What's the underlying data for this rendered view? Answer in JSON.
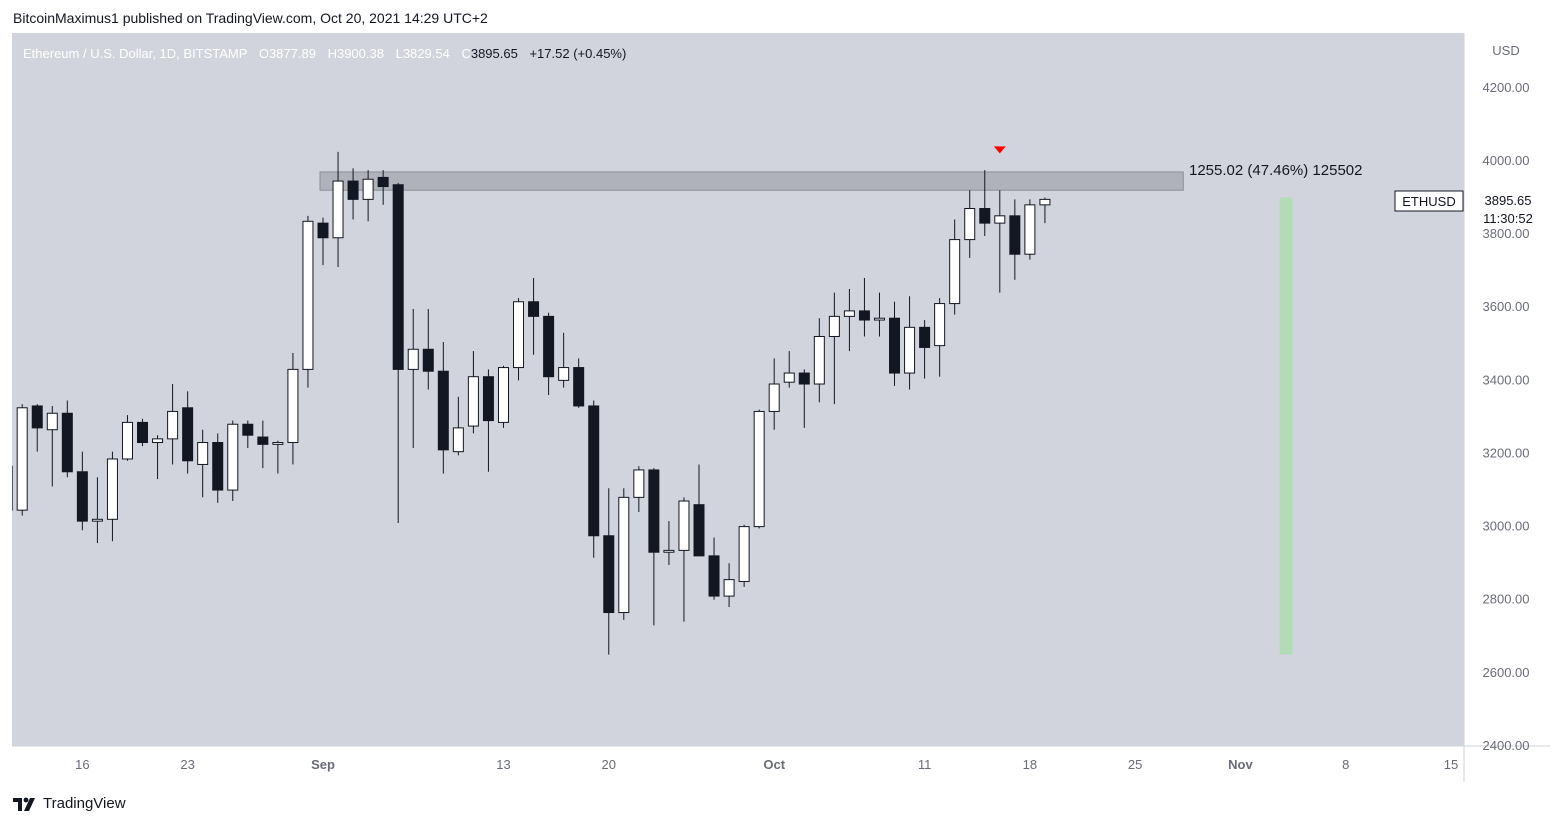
{
  "publisher": "BitcoinMaximus1 published on TradingView.com, Oct 20, 2021 14:29 UTC+2",
  "footer": {
    "brand": "TradingView",
    "logo_icon": "tradingview-logo-icon"
  },
  "colors": {
    "chart_bg": "#d1d4dc",
    "axis_bg": "#ffffff",
    "candle_up_fill": "#ffffff",
    "candle_down_fill": "#131722",
    "candle_border": "#131722",
    "resistance_zone": "#a6a9b0",
    "target_bar": "#b3dcb6",
    "marker_red": "#ff0000",
    "legend_text": "#ffffff"
  },
  "legend": {
    "symbol": "Ethereum / U.S. Dollar, 1D, BITSTAMP",
    "open_label": "O",
    "open": "3877.89",
    "high_label": "H",
    "high": "3900.38",
    "low_label": "L",
    "low": "3829.54",
    "close_label": "C",
    "close": "3895.65",
    "change": "+17.52 (+0.45%)"
  },
  "price_axis": {
    "currency": "USD"
  },
  "price_tag": {
    "symbol": "ETHUSD",
    "price": "3895.65",
    "countdown": "11:30:52"
  },
  "measure_label": "1255.02 (47.46%) 125502",
  "chart_data": {
    "type": "candlestick",
    "title": "",
    "ylim": [
      2400,
      4350
    ],
    "y_ticks": [
      2400,
      2600,
      2800,
      3000,
      3200,
      3400,
      3600,
      3800,
      4000,
      4200
    ],
    "x_ticks": [
      {
        "label": "16",
        "date": "2021-08-16"
      },
      {
        "label": "23",
        "date": "2021-08-23"
      },
      {
        "label": "Sep",
        "date": "2021-09-01"
      },
      {
        "label": "13",
        "date": "2021-09-13"
      },
      {
        "label": "20",
        "date": "2021-09-20"
      },
      {
        "label": "Oct",
        "date": "2021-10-01"
      },
      {
        "label": "11",
        "date": "2021-10-11"
      },
      {
        "label": "18",
        "date": "2021-10-18"
      },
      {
        "label": "25",
        "date": "2021-10-25"
      },
      {
        "label": "Nov",
        "date": "2021-11-01"
      },
      {
        "label": "8",
        "date": "2021-11-08"
      },
      {
        "label": "15",
        "date": "2021-11-15"
      }
    ],
    "resistance_zone": {
      "low": 3920,
      "high": 3970,
      "from": "2021-09-01",
      "to": "2021-10-28"
    },
    "target_range": {
      "low": 2650,
      "high": 3900,
      "date": "2021-11-04"
    },
    "marker": {
      "date": "2021-10-16",
      "price": 4040
    },
    "candles": [
      {
        "date": "2021-08-11",
        "o": 3165,
        "h": 3270,
        "l": 2975,
        "c": 3045
      },
      {
        "date": "2021-08-12",
        "o": 3045,
        "h": 3335,
        "l": 3030,
        "c": 3325
      },
      {
        "date": "2021-08-13",
        "o": 3330,
        "h": 3335,
        "l": 3205,
        "c": 3270
      },
      {
        "date": "2021-08-14",
        "o": 3265,
        "h": 3330,
        "l": 3110,
        "c": 3310
      },
      {
        "date": "2021-08-15",
        "o": 3310,
        "h": 3345,
        "l": 3135,
        "c": 3150
      },
      {
        "date": "2021-08-16",
        "o": 3150,
        "h": 3205,
        "l": 2990,
        "c": 3015
      },
      {
        "date": "2021-08-17",
        "o": 3015,
        "h": 3135,
        "l": 2955,
        "c": 3020
      },
      {
        "date": "2021-08-18",
        "o": 3020,
        "h": 3205,
        "l": 2960,
        "c": 3185
      },
      {
        "date": "2021-08-19",
        "o": 3185,
        "h": 3305,
        "l": 3180,
        "c": 3285
      },
      {
        "date": "2021-08-20",
        "o": 3285,
        "h": 3295,
        "l": 3220,
        "c": 3230
      },
      {
        "date": "2021-08-21",
        "o": 3230,
        "h": 3250,
        "l": 3130,
        "c": 3240
      },
      {
        "date": "2021-08-22",
        "o": 3240,
        "h": 3390,
        "l": 3170,
        "c": 3315
      },
      {
        "date": "2021-08-23",
        "o": 3325,
        "h": 3370,
        "l": 3145,
        "c": 3180
      },
      {
        "date": "2021-08-24",
        "o": 3170,
        "h": 3265,
        "l": 3080,
        "c": 3230
      },
      {
        "date": "2021-08-25",
        "o": 3230,
        "h": 3255,
        "l": 3065,
        "c": 3100
      },
      {
        "date": "2021-08-26",
        "o": 3100,
        "h": 3290,
        "l": 3070,
        "c": 3280
      },
      {
        "date": "2021-08-27",
        "o": 3280,
        "h": 3290,
        "l": 3215,
        "c": 3250
      },
      {
        "date": "2021-08-28",
        "o": 3245,
        "h": 3290,
        "l": 3160,
        "c": 3225
      },
      {
        "date": "2021-08-29",
        "o": 3225,
        "h": 3235,
        "l": 3145,
        "c": 3230
      },
      {
        "date": "2021-08-30",
        "o": 3230,
        "h": 3475,
        "l": 3170,
        "c": 3430
      },
      {
        "date": "2021-08-31",
        "o": 3430,
        "h": 3850,
        "l": 3380,
        "c": 3835
      },
      {
        "date": "2021-09-01",
        "o": 3830,
        "h": 3845,
        "l": 3715,
        "c": 3790
      },
      {
        "date": "2021-09-02",
        "o": 3790,
        "h": 4025,
        "l": 3710,
        "c": 3945
      },
      {
        "date": "2021-09-03",
        "o": 3945,
        "h": 3980,
        "l": 3840,
        "c": 3895
      },
      {
        "date": "2021-09-04",
        "o": 3895,
        "h": 3975,
        "l": 3835,
        "c": 3950
      },
      {
        "date": "2021-09-05",
        "o": 3955,
        "h": 3975,
        "l": 3880,
        "c": 3930
      },
      {
        "date": "2021-09-06",
        "o": 3935,
        "h": 3940,
        "l": 3010,
        "c": 3430
      },
      {
        "date": "2021-09-07",
        "o": 3430,
        "h": 3595,
        "l": 3215,
        "c": 3485
      },
      {
        "date": "2021-09-08",
        "o": 3485,
        "h": 3595,
        "l": 3375,
        "c": 3425
      },
      {
        "date": "2021-09-09",
        "o": 3425,
        "h": 3505,
        "l": 3145,
        "c": 3210
      },
      {
        "date": "2021-09-10",
        "o": 3205,
        "h": 3355,
        "l": 3195,
        "c": 3270
      },
      {
        "date": "2021-09-11",
        "o": 3275,
        "h": 3480,
        "l": 3255,
        "c": 3410
      },
      {
        "date": "2021-09-12",
        "o": 3410,
        "h": 3430,
        "l": 3150,
        "c": 3290
      },
      {
        "date": "2021-09-13",
        "o": 3285,
        "h": 3440,
        "l": 3270,
        "c": 3435
      },
      {
        "date": "2021-09-14",
        "o": 3435,
        "h": 3625,
        "l": 3400,
        "c": 3615
      },
      {
        "date": "2021-09-15",
        "o": 3615,
        "h": 3680,
        "l": 3470,
        "c": 3575
      },
      {
        "date": "2021-09-16",
        "o": 3575,
        "h": 3585,
        "l": 3360,
        "c": 3410
      },
      {
        "date": "2021-09-17",
        "o": 3400,
        "h": 3530,
        "l": 3380,
        "c": 3435
      },
      {
        "date": "2021-09-18",
        "o": 3435,
        "h": 3460,
        "l": 3325,
        "c": 3330
      },
      {
        "date": "2021-09-19",
        "o": 3330,
        "h": 3345,
        "l": 2915,
        "c": 2975
      },
      {
        "date": "2021-09-20",
        "o": 2975,
        "h": 3105,
        "l": 2650,
        "c": 2765
      },
      {
        "date": "2021-09-21",
        "o": 2765,
        "h": 3105,
        "l": 2745,
        "c": 3080
      },
      {
        "date": "2021-09-22",
        "o": 3080,
        "h": 3165,
        "l": 3040,
        "c": 3155
      },
      {
        "date": "2021-09-23",
        "o": 3155,
        "h": 3160,
        "l": 2730,
        "c": 2930
      },
      {
        "date": "2021-09-24",
        "o": 2930,
        "h": 3015,
        "l": 2895,
        "c": 2935
      },
      {
        "date": "2021-09-25",
        "o": 2935,
        "h": 3080,
        "l": 2740,
        "c": 3070
      },
      {
        "date": "2021-09-26",
        "o": 3060,
        "h": 3170,
        "l": 2925,
        "c": 2920
      },
      {
        "date": "2021-09-27",
        "o": 2920,
        "h": 2970,
        "l": 2800,
        "c": 2810
      },
      {
        "date": "2021-09-28",
        "o": 2810,
        "h": 2900,
        "l": 2780,
        "c": 2855
      },
      {
        "date": "2021-09-29",
        "o": 2850,
        "h": 3005,
        "l": 2835,
        "c": 3000
      },
      {
        "date": "2021-09-30",
        "o": 3000,
        "h": 3320,
        "l": 2995,
        "c": 3315
      },
      {
        "date": "2021-10-01",
        "o": 3315,
        "h": 3460,
        "l": 3265,
        "c": 3390
      },
      {
        "date": "2021-10-02",
        "o": 3395,
        "h": 3480,
        "l": 3380,
        "c": 3420
      },
      {
        "date": "2021-10-03",
        "o": 3420,
        "h": 3430,
        "l": 3270,
        "c": 3390
      },
      {
        "date": "2021-10-04",
        "o": 3390,
        "h": 3570,
        "l": 3340,
        "c": 3520
      },
      {
        "date": "2021-10-05",
        "o": 3520,
        "h": 3640,
        "l": 3335,
        "c": 3575
      },
      {
        "date": "2021-10-06",
        "o": 3575,
        "h": 3650,
        "l": 3480,
        "c": 3590
      },
      {
        "date": "2021-10-07",
        "o": 3590,
        "h": 3680,
        "l": 3520,
        "c": 3565
      },
      {
        "date": "2021-10-08",
        "o": 3565,
        "h": 3640,
        "l": 3520,
        "c": 3570
      },
      {
        "date": "2021-10-09",
        "o": 3570,
        "h": 3615,
        "l": 3385,
        "c": 3420
      },
      {
        "date": "2021-10-10",
        "o": 3420,
        "h": 3630,
        "l": 3375,
        "c": 3545
      },
      {
        "date": "2021-10-11",
        "o": 3545,
        "h": 3565,
        "l": 3405,
        "c": 3490
      },
      {
        "date": "2021-10-12",
        "o": 3495,
        "h": 3625,
        "l": 3410,
        "c": 3610
      },
      {
        "date": "2021-10-13",
        "o": 3610,
        "h": 3840,
        "l": 3580,
        "c": 3785
      },
      {
        "date": "2021-10-14",
        "o": 3785,
        "h": 3920,
        "l": 3735,
        "c": 3870
      },
      {
        "date": "2021-10-15",
        "o": 3870,
        "h": 3975,
        "l": 3795,
        "c": 3830
      },
      {
        "date": "2021-10-16",
        "o": 3830,
        "h": 3920,
        "l": 3640,
        "c": 3850
      },
      {
        "date": "2021-10-17",
        "o": 3850,
        "h": 3895,
        "l": 3675,
        "c": 3745
      },
      {
        "date": "2021-10-18",
        "o": 3745,
        "h": 3895,
        "l": 3730,
        "c": 3880
      },
      {
        "date": "2021-10-19",
        "o": 3880,
        "h": 3900,
        "l": 3830,
        "c": 3895
      }
    ]
  }
}
